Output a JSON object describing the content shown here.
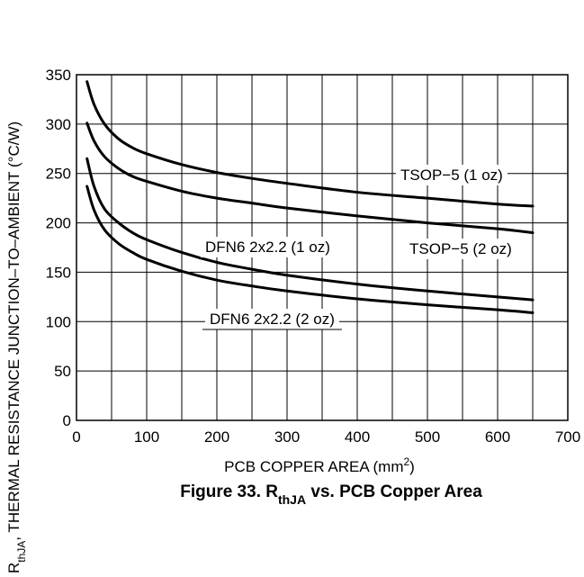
{
  "chart_data": {
    "type": "line",
    "title": "",
    "caption": {
      "prefix": "Figure 33. R",
      "subscript": "thJA",
      "suffix": " vs. PCB Copper Area"
    },
    "xlabel": {
      "main": "PCB COPPER AREA (mm",
      "superscript": "2",
      "end": ")"
    },
    "ylabel": {
      "main": "R",
      "subscript": "thJA",
      "rest": ", THERMAL RESISTANCE JUNCTION–TO–AMBIENT (°C/W)"
    },
    "xlim": [
      0,
      700
    ],
    "ylim": [
      0,
      350
    ],
    "xticks": [
      0,
      100,
      200,
      300,
      400,
      500,
      600,
      700
    ],
    "yticks": [
      0,
      50,
      100,
      150,
      200,
      250,
      300,
      350
    ],
    "grid": true,
    "legend": "inline labels",
    "series": [
      {
        "name": "TSOP−5 (1 oz)",
        "x": [
          15,
          25,
          40,
          60,
          80,
          100,
          150,
          200,
          250,
          300,
          400,
          500,
          600,
          650
        ],
        "y": [
          343,
          320,
          300,
          285,
          276,
          270,
          259,
          251,
          245,
          240,
          231,
          225,
          219,
          217
        ]
      },
      {
        "name": "TSOP−5 (2 oz)",
        "x": [
          15,
          25,
          40,
          60,
          80,
          100,
          150,
          200,
          250,
          300,
          400,
          500,
          600,
          650
        ],
        "y": [
          301,
          283,
          267,
          255,
          247,
          242,
          232,
          225,
          220,
          215,
          207,
          200,
          194,
          190
        ]
      },
      {
        "name": "DFN6 2x2.2 (1 oz)",
        "x": [
          15,
          25,
          40,
          60,
          80,
          100,
          150,
          200,
          250,
          300,
          400,
          500,
          600,
          650
        ],
        "y": [
          265,
          237,
          214,
          200,
          190,
          183,
          170,
          160,
          153,
          147,
          138,
          131,
          125,
          122
        ]
      },
      {
        "name": "DFN6 2x2.2 (2 oz)",
        "x": [
          15,
          25,
          40,
          60,
          80,
          100,
          150,
          200,
          250,
          300,
          400,
          500,
          600,
          650
        ],
        "y": [
          237,
          213,
          193,
          179,
          170,
          163,
          151,
          142,
          136,
          131,
          123,
          117,
          112,
          109
        ]
      }
    ]
  }
}
